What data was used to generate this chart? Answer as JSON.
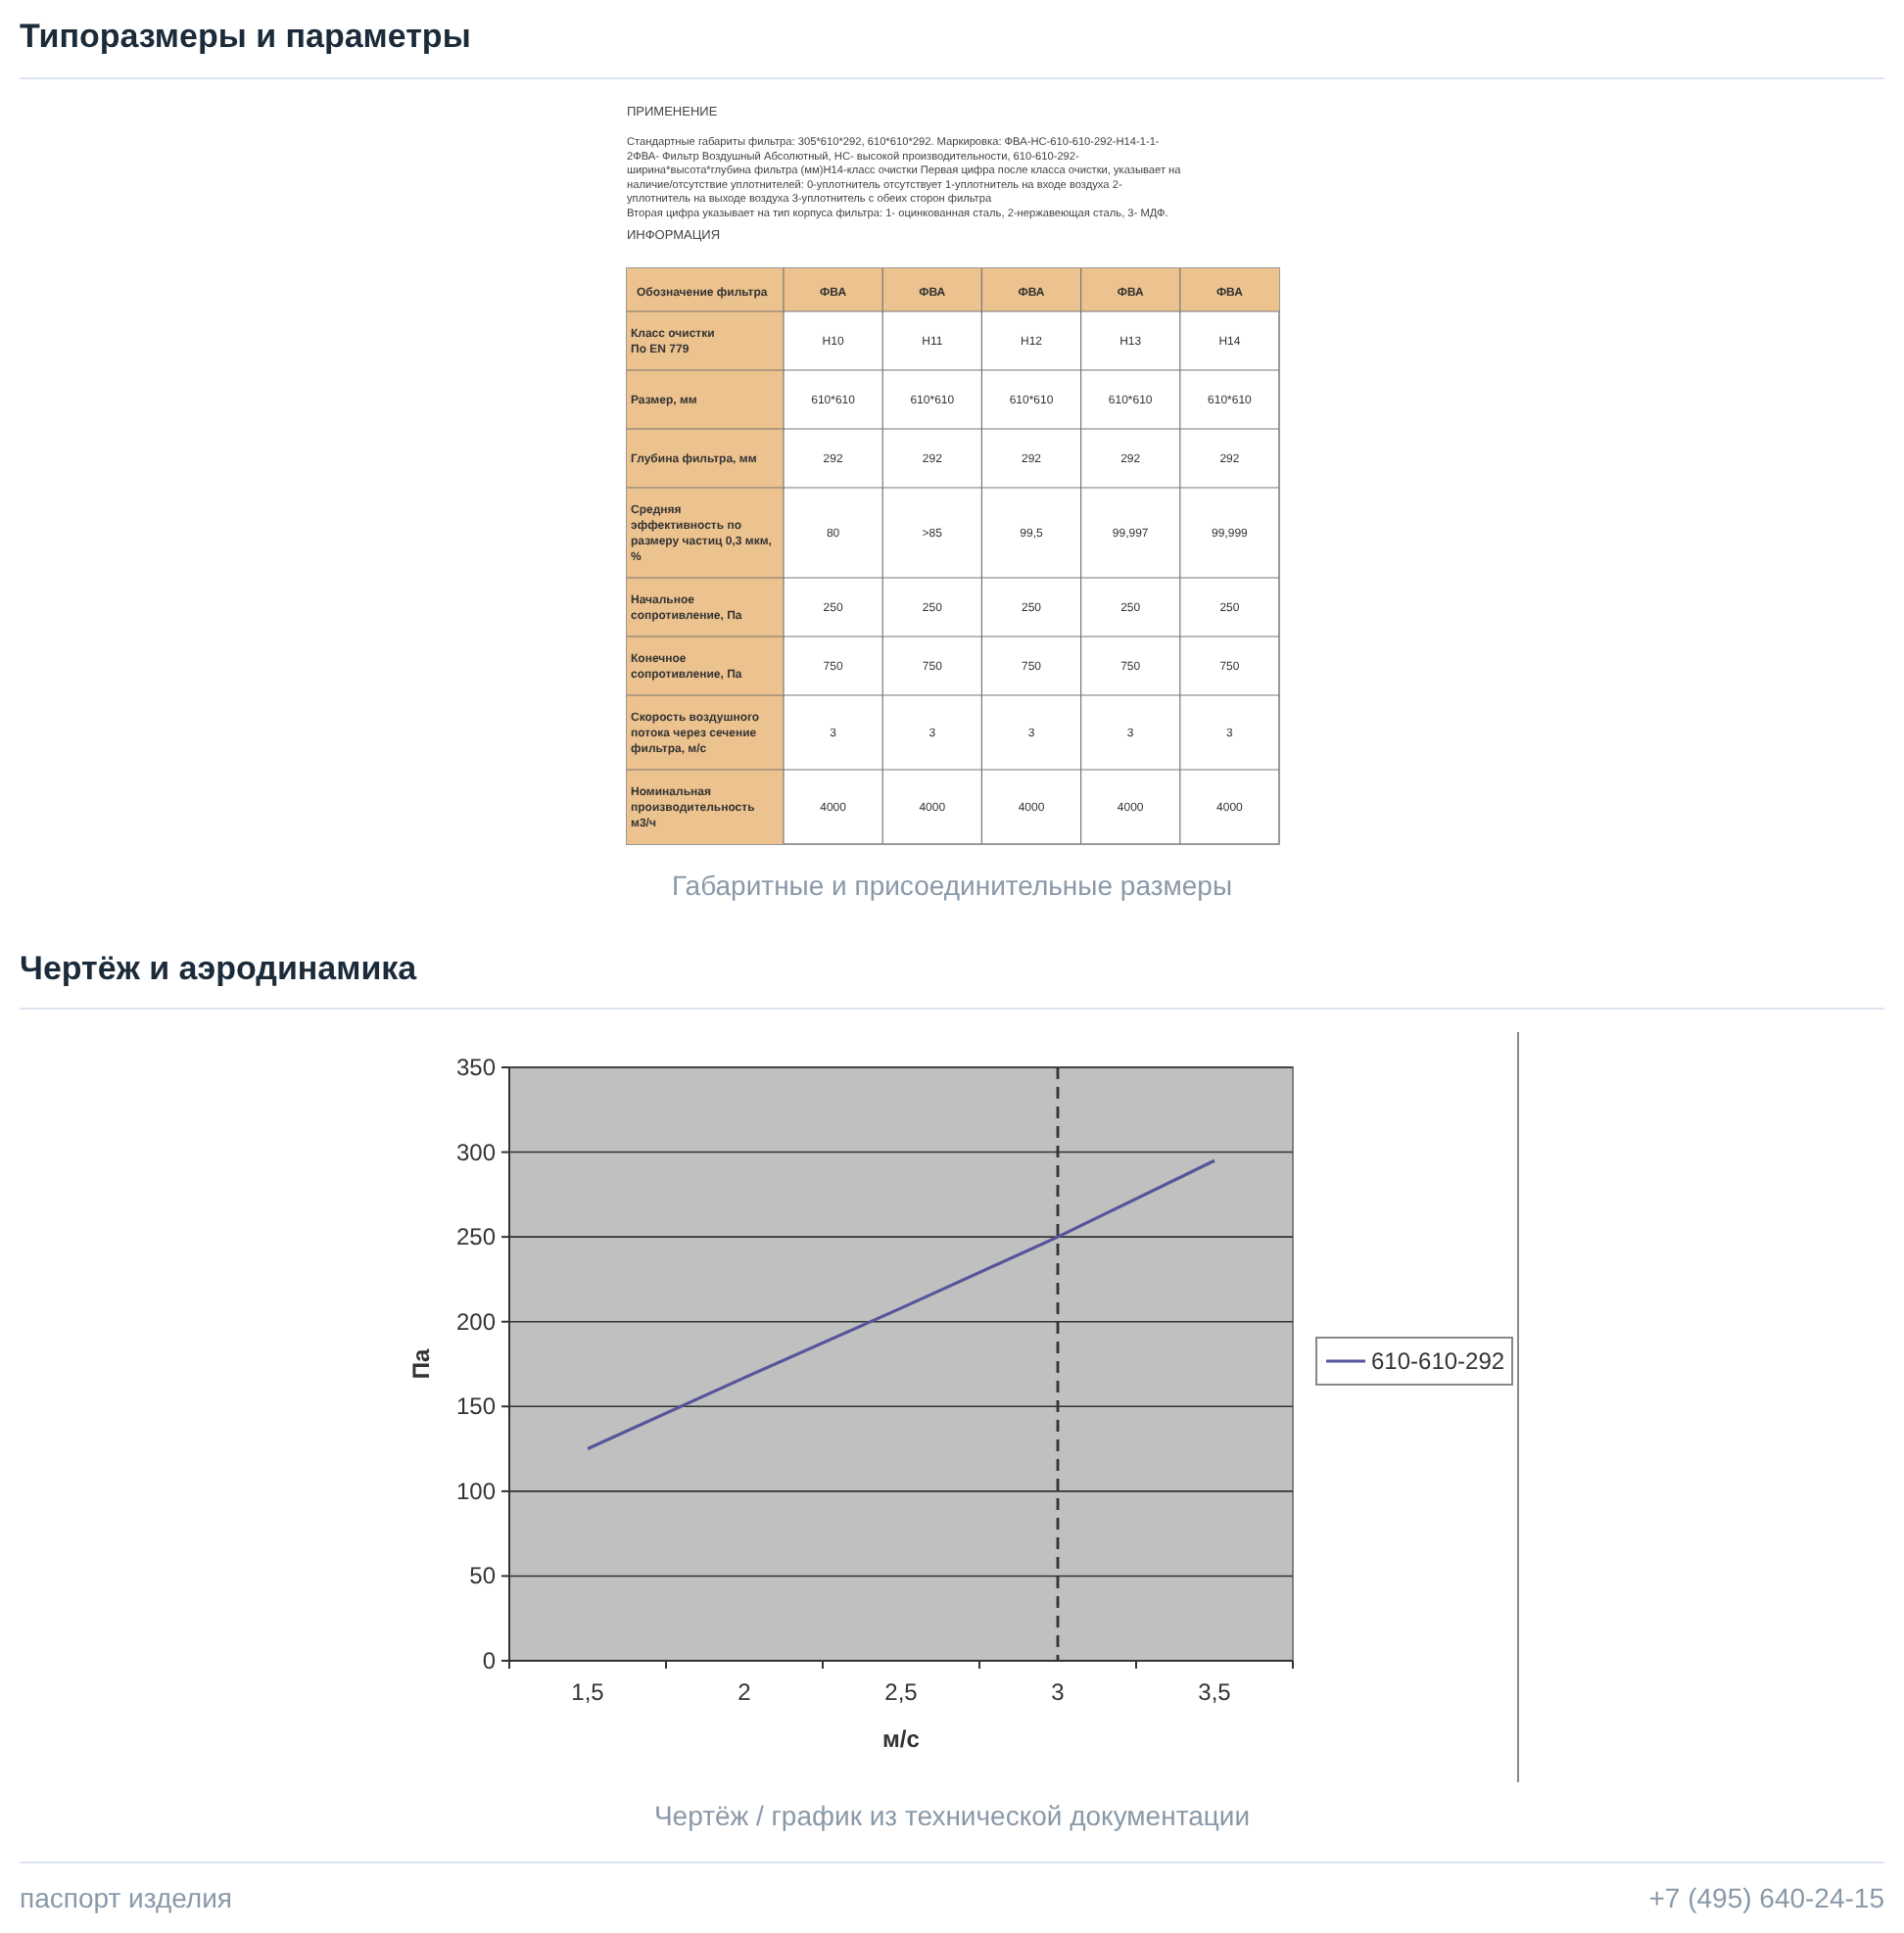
{
  "chart_data": [
    {
      "type": "other",
      "title": "Типоразмеры и параметры",
      "annotations": [
        "ПРИМЕНЕНИЕ",
        "Стандартные габариты фильтра: 305*610*292, 610*610*292.  Маркировка: ФВА-НС-610-610-292-Н14-1-1-",
        "2ФВА- Фильтр Воздушный Абсолютный, НС- высокой производительности, 610-610-292-",
        "ширина*высота*глубина фильтра (мм)Н14-класс очистки Первая цифра после класса очистки, указывает на",
        "наличие/отсутствие уплотнителей: 0-уплотнитель отсутствует 1-уплотнитель на входе воздуха 2-",
        "уплотнитель на выходе воздуха 3-уплотнитель с обеих сторон фильтра",
        "Вторая цифра указывает на тип корпуса фильтра: 1- оцинкованная сталь, 2-нержавеющая сталь, 3- МДФ.",
        "ИНФОРМАЦИЯ",
        "Габаритные и присоединительные размеры"
      ],
      "ylabel": "Обозначение фильтра",
      "categories": [
        "ФВА",
        "ФВА",
        "ФВА",
        "ФВА",
        "ФВА"
      ],
      "y_categories": [
        "Класс очистки\nПо EN 779",
        "Размер, мм",
        "Глубина фильтра, мм",
        "Средняя\nэффективность по\nразмеру частиц 0,3 мкм,\n%",
        "Начальное\nсопротивление, Па",
        "Конечное\nсопротивление, Па",
        "Скорость воздушного\nпотока через сечение\nфильтра, м/с",
        "Номинальная\nпроизводительность\nм3/ч"
      ],
      "cell_labels": [
        [
          "H10",
          "H11",
          "H12",
          "H13",
          "H14"
        ],
        [
          "610*610",
          "610*610",
          "610*610",
          "610*610",
          "610*610"
        ],
        [
          "292",
          "292",
          "292",
          "292",
          "292"
        ],
        [
          "80",
          ">85",
          "99,5",
          "99,997",
          "99,999"
        ],
        [
          "250",
          "250",
          "250",
          "250",
          "250"
        ],
        [
          "750",
          "750",
          "750",
          "750",
          "750"
        ],
        [
          "3",
          "3",
          "3",
          "3",
          "3"
        ],
        [
          "4000",
          "4000",
          "4000",
          "4000",
          "4000"
        ]
      ]
    },
    {
      "type": "line",
      "title": "Чертёж и аэродинамика",
      "xlabel": "м/с",
      "ylabel": "Па",
      "categories": [
        "1,5",
        "2",
        "2,5",
        "3",
        "3,5"
      ],
      "series": [
        {
          "name": "610-610-292",
          "color": "#55559a",
          "values": [
            125,
            167,
            208,
            250,
            295
          ]
        }
      ],
      "ylim": [
        0,
        350
      ],
      "yticks": [
        0,
        50,
        100,
        150,
        200,
        250,
        300,
        350
      ],
      "grid": "y",
      "legend": "right",
      "ref_lines": [
        {
          "axis": "x",
          "value": "3",
          "color": "#333333",
          "line_style": "dashed"
        }
      ],
      "annotations": [
        "Чертёж / график из технической документации",
        "паспорт изделия",
        "+7 (495) 640-24-15"
      ]
    }
  ]
}
